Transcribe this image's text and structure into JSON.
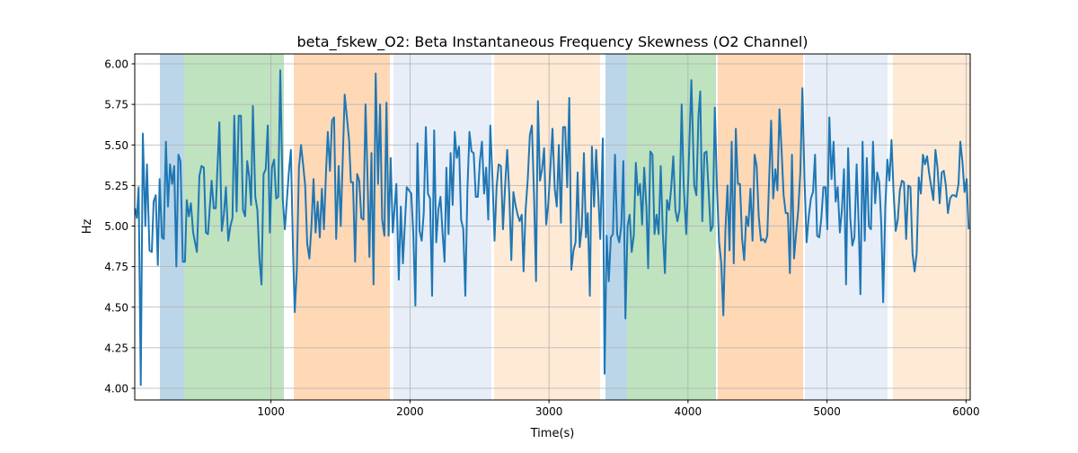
{
  "chart_data": {
    "type": "line",
    "title": "beta_fskew_O2: Beta Instantaneous Frequency Skewness (O2 Channel)",
    "xlabel": "Time(s)",
    "ylabel": "Hz",
    "xlim": [
      20,
      6030
    ],
    "ylim": [
      3.928,
      6.061
    ],
    "grid": true,
    "line_color": "#1f77b4",
    "xticks": [
      1000,
      2000,
      3000,
      4000,
      5000,
      6000
    ],
    "xtick_labels": [
      "1000",
      "2000",
      "3000",
      "4000",
      "5000",
      "6000"
    ],
    "yticks": [
      4.0,
      4.25,
      4.5,
      4.75,
      5.0,
      5.25,
      5.5,
      5.75,
      6.0
    ],
    "ytick_labels": [
      "4.00",
      "4.25",
      "4.50",
      "4.75",
      "5.00",
      "5.25",
      "5.50",
      "5.75",
      "6.00"
    ],
    "spans": [
      {
        "start": 201,
        "end": 375,
        "color": "#1f77b4",
        "opacity": 0.3
      },
      {
        "start": 375,
        "end": 1093,
        "color": "#2ca02c",
        "opacity": 0.3
      },
      {
        "start": 1164,
        "end": 1855,
        "color": "#ff7f0e",
        "opacity": 0.3
      },
      {
        "start": 1881,
        "end": 2585,
        "color": "#aec7e8",
        "opacity": 0.3
      },
      {
        "start": 2605,
        "end": 3367,
        "color": "#ffbb78",
        "opacity": 0.3
      },
      {
        "start": 3406,
        "end": 3561,
        "color": "#1f77b4",
        "opacity": 0.3
      },
      {
        "start": 3561,
        "end": 4201,
        "color": "#2ca02c",
        "opacity": 0.3
      },
      {
        "start": 4214,
        "end": 4828,
        "color": "#ff7f0e",
        "opacity": 0.3
      },
      {
        "start": 4841,
        "end": 5435,
        "color": "#aec7e8",
        "opacity": 0.3
      },
      {
        "start": 5474,
        "end": 6030,
        "color": "#ffbb78",
        "opacity": 0.3
      }
    ],
    "series": [
      {
        "name": "beta_fskew_O2",
        "x": [
          22,
          35,
          48,
          63,
          78,
          96,
          108,
          126,
          143,
          156,
          171,
          186,
          199,
          216,
          229,
          244,
          259,
          274,
          289,
          304,
          319,
          334,
          349,
          366,
          381,
          394,
          409,
          424,
          440,
          467,
          485,
          500,
          517,
          532,
          547,
          573,
          588,
          603,
          629,
          646,
          661,
          676,
          693,
          708,
          723,
          736,
          753,
          768,
          784,
          799,
          814,
          829,
          844,
          857,
          870,
          887,
          902,
          917,
          932,
          947,
          962,
          977,
          992,
          1007,
          1022,
          1037,
          1052,
          1067,
          1085,
          1100,
          1128,
          1143,
          1158,
          1171,
          1186,
          1201,
          1216,
          1231,
          1246,
          1261,
          1276,
          1291,
          1306,
          1321,
          1336,
          1351,
          1366,
          1381,
          1396,
          1409,
          1424,
          1439,
          1454,
          1469,
          1487,
          1502,
          1530,
          1562,
          1575,
          1590,
          1605,
          1620,
          1635,
          1650,
          1665,
          1680,
          1693,
          1708,
          1723,
          1738,
          1753,
          1770,
          1785,
          1800,
          1816,
          1831,
          1846,
          1861,
          1876,
          1902,
          1919,
          1934,
          1949,
          1977,
          2009,
          2024,
          2039,
          2054,
          2069,
          2084,
          2099,
          2114,
          2129,
          2144,
          2159,
          2174,
          2189,
          2204,
          2219,
          2234,
          2249,
          2262,
          2277,
          2292,
          2307,
          2322,
          2337,
          2353,
          2368,
          2383,
          2398,
          2413,
          2428,
          2443,
          2458,
          2473,
          2488,
          2503,
          2518,
          2533,
          2548,
          2563,
          2578,
          2593,
          2608,
          2623,
          2638,
          2654,
          2669,
          2684,
          2699,
          2714,
          2729,
          2744,
          2759,
          2774,
          2789,
          2804,
          2817,
          2832,
          2847,
          2862,
          2877,
          2892,
          2907,
          2920,
          2935,
          2950,
          2965,
          2980,
          2995,
          3010,
          3025,
          3041,
          3056,
          3071,
          3086,
          3101,
          3116,
          3131,
          3146,
          3161,
          3176,
          3191,
          3206,
          3221,
          3236,
          3251,
          3266,
          3279,
          3294,
          3309,
          3324,
          3339,
          3354,
          3369,
          3387,
          3400,
          3415,
          3430,
          3445,
          3460,
          3475,
          3490,
          3505,
          3520,
          3535,
          3550,
          3565,
          3580,
          3595,
          3610,
          3625,
          3640,
          3655,
          3670,
          3685,
          3701,
          3713,
          3729,
          3744,
          3759,
          3774,
          3789,
          3804,
          3819,
          3834,
          3849,
          3864,
          3879,
          3894,
          3909,
          3924,
          3939,
          3954,
          3969,
          3987,
          4002,
          4024,
          4045,
          4060,
          4075,
          4088,
          4103,
          4118,
          4133,
          4148,
          4163,
          4178,
          4193,
          4208,
          4224,
          4239,
          4254,
          4269,
          4284,
          4299,
          4314,
          4329,
          4344,
          4359,
          4374,
          4389,
          4404,
          4419,
          4434,
          4449,
          4464,
          4479,
          4494,
          4509,
          4525,
          4540,
          4555,
          4570,
          4585,
          4598,
          4613,
          4628,
          4643,
          4658,
          4673,
          4688,
          4703,
          4718,
          4733,
          4748,
          4763,
          4778,
          4793,
          4808,
          4823,
          4838,
          4853,
          4869,
          4884,
          4899,
          4914,
          4929,
          4944,
          4959,
          4974,
          4989,
          5002,
          5017,
          5032,
          5047,
          5062,
          5077,
          5092,
          5107,
          5122,
          5137,
          5152,
          5167,
          5182,
          5197,
          5213,
          5228,
          5240,
          5256,
          5271,
          5286,
          5301,
          5316,
          5331,
          5346,
          5361,
          5376,
          5391,
          5404,
          5419,
          5434,
          5449,
          5464,
          5479,
          5494,
          5509,
          5524,
          5539,
          5554,
          5569,
          5584,
          5600,
          5615,
          5630,
          5645,
          5660,
          5675,
          5690,
          5705,
          5720,
          5735,
          5750,
          5765,
          5780,
          5795,
          5810,
          5825,
          5840,
          5855,
          5870,
          5885,
          5900,
          5915,
          5930,
          5946,
          5959,
          5974,
          5989,
          6004,
          6019
        ],
        "y": [
          5.11,
          5.05,
          5.24,
          4.02,
          5.57,
          5.0,
          5.38,
          4.85,
          4.84,
          5.15,
          5.19,
          4.76,
          5.29,
          4.93,
          4.92,
          5.52,
          5.12,
          5.38,
          5.26,
          5.37,
          4.75,
          5.44,
          5.4,
          4.78,
          4.78,
          5.16,
          5.06,
          5.14,
          4.96,
          4.84,
          5.31,
          5.37,
          5.36,
          4.96,
          4.95,
          5.28,
          5.11,
          5.11,
          5.64,
          4.97,
          5.07,
          5.24,
          4.91,
          5.0,
          5.05,
          5.68,
          5.09,
          5.68,
          5.68,
          5.1,
          5.06,
          5.4,
          5.3,
          5.13,
          5.74,
          5.18,
          5.1,
          4.8,
          4.64,
          5.32,
          5.35,
          5.62,
          4.96,
          5.36,
          5.41,
          5.17,
          5.18,
          5.96,
          5.16,
          4.98,
          5.33,
          5.47,
          4.87,
          4.47,
          4.73,
          5.36,
          5.5,
          5.38,
          5.25,
          4.89,
          4.8,
          5.0,
          5.29,
          4.96,
          5.15,
          4.93,
          5.23,
          4.98,
          5.33,
          5.58,
          5.34,
          5.65,
          5.67,
          4.92,
          5.37,
          5.0,
          5.81,
          5.53,
          5.27,
          5.27,
          4.78,
          5.32,
          5.28,
          5.05,
          5.04,
          5.75,
          5.35,
          4.81,
          5.45,
          4.64,
          5.94,
          5.26,
          5.75,
          5.04,
          4.94,
          5.76,
          4.94,
          5.42,
          4.96,
          5.26,
          4.67,
          5.12,
          4.77,
          5.24,
          5.2,
          4.95,
          4.51,
          5.51,
          4.97,
          4.91,
          5.08,
          5.61,
          5.2,
          5.17,
          4.57,
          5.59,
          4.9,
          5.1,
          5.18,
          4.96,
          4.78,
          5.36,
          4.95,
          5.45,
          5.13,
          5.58,
          5.42,
          5.49,
          5.04,
          4.98,
          4.57,
          5.22,
          5.58,
          5.46,
          5.45,
          5.18,
          5.18,
          5.4,
          5.52,
          5.2,
          5.36,
          5.04,
          5.62,
          5.3,
          4.91,
          5.24,
          5.38,
          5.37,
          4.98,
          5.24,
          5.47,
          5.2,
          4.79,
          5.21,
          5.13,
          5.07,
          5.03,
          5.07,
          4.72,
          5.1,
          5.29,
          5.56,
          5.62,
          5.2,
          4.66,
          5.77,
          5.28,
          5.35,
          5.48,
          5.01,
          5.14,
          5.36,
          5.6,
          5.23,
          5.12,
          5.5,
          5.02,
          5.61,
          5.61,
          5.24,
          5.79,
          4.73,
          4.85,
          4.9,
          5.33,
          4.87,
          5.0,
          5.45,
          4.93,
          5.08,
          4.57,
          5.49,
          5.12,
          5.47,
          5.2,
          4.92,
          5.54,
          4.09,
          4.94,
          4.66,
          4.93,
          4.95,
          5.44,
          4.95,
          4.9,
          5.0,
          5.4,
          4.43,
          5.0,
          5.07,
          4.84,
          4.94,
          5.39,
          5.19,
          5.26,
          5.01,
          5.36,
          5.11,
          4.74,
          5.46,
          5.44,
          4.95,
          5.07,
          4.95,
          5.37,
          4.95,
          4.71,
          5.16,
          5.1,
          5.23,
          5.43,
          5.1,
          5.03,
          5.1,
          5.75,
          5.25,
          4.95,
          5.3,
          5.9,
          5.25,
          5.19,
          5.68,
          5.83,
          5.03,
          5.45,
          5.46,
          5.22,
          4.97,
          5.0,
          5.73,
          5.24,
          4.9,
          4.77,
          4.45,
          4.97,
          5.25,
          4.85,
          5.52,
          4.77,
          5.6,
          5.26,
          5.26,
          4.92,
          4.79,
          5.06,
          5.0,
          5.23,
          4.91,
          5.44,
          5.37,
          5.06,
          4.91,
          4.92,
          4.9,
          4.94,
          5.32,
          5.65,
          5.17,
          5.35,
          5.22,
          5.72,
          5.47,
          5.19,
          5.08,
          5.08,
          4.71,
          5.44,
          4.8,
          4.96,
          5.1,
          5.33,
          5.85,
          5.29,
          4.9,
          5.06,
          5.17,
          5.21,
          5.44,
          4.94,
          4.93,
          5.05,
          5.24,
          5.24,
          4.98,
          5.67,
          5.29,
          5.52,
          5.15,
          5.24,
          4.96,
          5.1,
          5.35,
          4.64,
          5.48,
          5.05,
          4.88,
          4.93,
          5.38,
          5.0,
          4.58,
          5.52,
          4.91,
          5.42,
          5.0,
          4.98,
          5.52,
          5.14,
          5.33,
          5.27,
          5.0,
          4.53,
          5.12,
          5.41,
          5.28,
          5.53,
          5.21,
          4.97,
          5.04,
          5.22,
          5.28,
          5.27,
          4.92,
          5.25,
          5.24,
          4.83,
          4.72,
          4.83,
          5.3,
          5.2,
          5.44,
          5.38,
          5.43,
          5.32,
          5.24,
          5.16,
          5.47,
          5.36,
          5.14,
          5.33,
          5.34,
          5.25,
          5.08,
          5.17,
          5.19,
          5.19,
          5.18,
          5.26,
          5.52,
          5.4,
          5.21,
          5.29,
          4.98
        ]
      }
    ]
  }
}
